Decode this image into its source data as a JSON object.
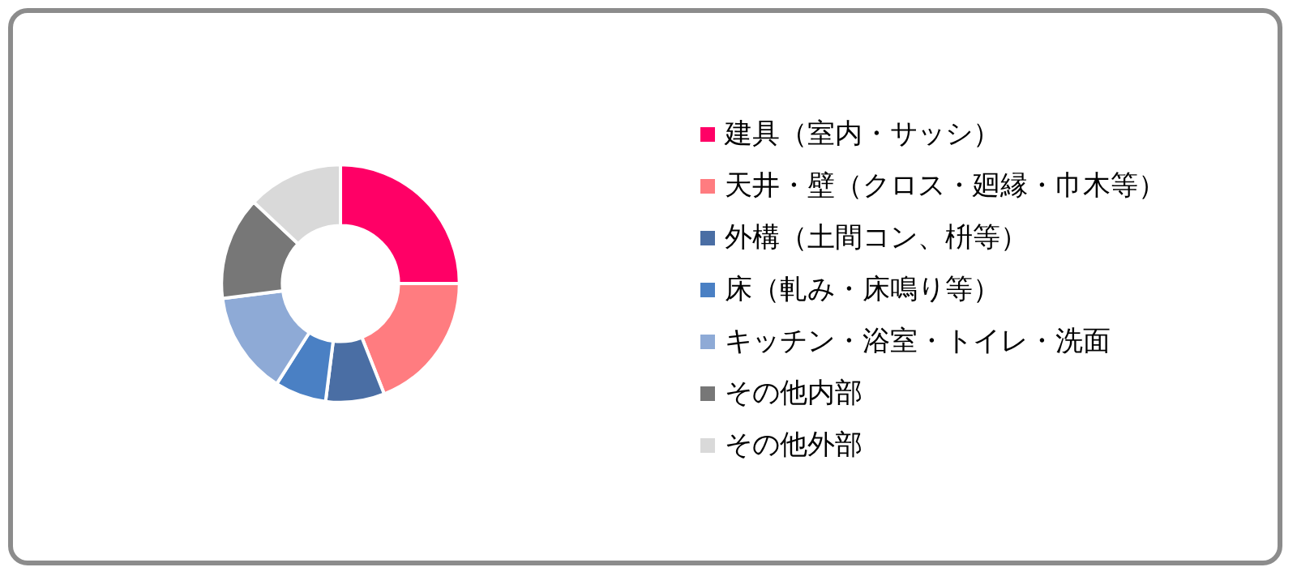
{
  "chart_data": {
    "type": "donut",
    "categories": [
      "建具（室内・サッシ）",
      "天井・壁（クロス・廻縁・巾木等）",
      "外構（土間コン、枡等）",
      "床（軋み・床鳴り等）",
      "キッチン・浴室・トイレ・洗面",
      "その他内部",
      "その他外部"
    ],
    "values": [
      25,
      19,
      8,
      7,
      14,
      14,
      13
    ],
    "colors": [
      "#ff0066",
      "#ff7c80",
      "#4a6ea4",
      "#4a80c4",
      "#8eaad6",
      "#777777",
      "#d9d9d9"
    ],
    "legend": "right"
  }
}
